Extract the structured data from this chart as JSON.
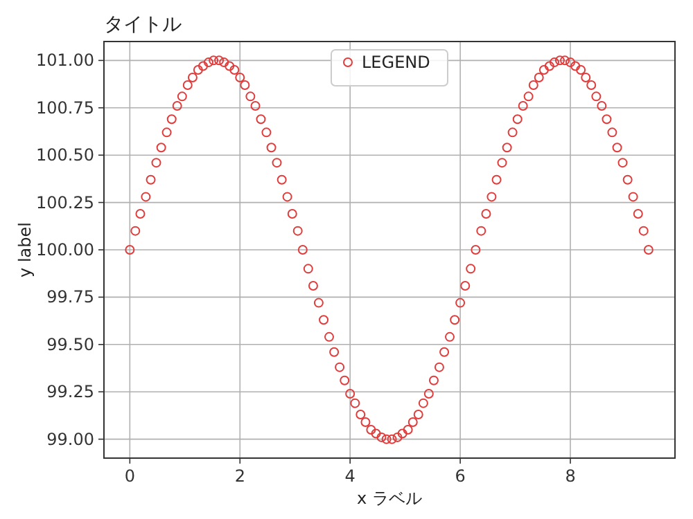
{
  "chart_data": {
    "type": "scatter",
    "title": "タイトル",
    "xlabel": "x ラベル",
    "ylabel": "y label",
    "x": [
      0.0,
      0.1,
      0.19,
      0.29,
      0.38,
      0.48,
      0.57,
      0.67,
      0.76,
      0.86,
      0.95,
      1.05,
      1.14,
      1.24,
      1.33,
      1.43,
      1.52,
      1.62,
      1.71,
      1.81,
      1.9,
      2.0,
      2.09,
      2.19,
      2.28,
      2.38,
      2.48,
      2.57,
      2.67,
      2.76,
      2.86,
      2.95,
      3.05,
      3.14,
      3.24,
      3.33,
      3.43,
      3.52,
      3.62,
      3.71,
      3.81,
      3.9,
      4.0,
      4.09,
      4.19,
      4.28,
      4.38,
      4.47,
      4.57,
      4.66,
      4.76,
      4.86,
      4.95,
      5.05,
      5.14,
      5.24,
      5.33,
      5.43,
      5.52,
      5.62,
      5.71,
      5.81,
      5.9,
      6.0,
      6.09,
      6.19,
      6.28,
      6.38,
      6.47,
      6.57,
      6.66,
      6.76,
      6.85,
      6.95,
      7.04,
      7.14,
      7.24,
      7.33,
      7.43,
      7.52,
      7.62,
      7.71,
      7.81,
      7.9,
      8.0,
      8.09,
      8.19,
      8.28,
      8.38,
      8.47,
      8.57,
      8.66,
      8.76,
      8.85,
      8.95,
      9.04,
      9.14,
      9.23,
      9.33,
      9.42
    ],
    "series": [
      {
        "name": "LEGEND",
        "color": "#e03c3c",
        "values": [
          100.0,
          100.1,
          100.19,
          100.28,
          100.37,
          100.46,
          100.54,
          100.62,
          100.69,
          100.76,
          100.81,
          100.87,
          100.91,
          100.95,
          100.97,
          100.99,
          101.0,
          101.0,
          100.99,
          100.97,
          100.95,
          100.91,
          100.87,
          100.81,
          100.76,
          100.69,
          100.62,
          100.54,
          100.46,
          100.37,
          100.28,
          100.19,
          100.1,
          100.0,
          99.9,
          99.81,
          99.72,
          99.63,
          99.54,
          99.46,
          99.38,
          99.31,
          99.24,
          99.19,
          99.13,
          99.09,
          99.05,
          99.03,
          99.01,
          99.0,
          99.0,
          99.01,
          99.03,
          99.05,
          99.09,
          99.13,
          99.19,
          99.24,
          99.31,
          99.38,
          99.46,
          99.54,
          99.63,
          99.72,
          99.81,
          99.9,
          100.0,
          100.1,
          100.19,
          100.28,
          100.37,
          100.46,
          100.54,
          100.62,
          100.69,
          100.76,
          100.81,
          100.87,
          100.91,
          100.95,
          100.97,
          100.99,
          101.0,
          101.0,
          100.99,
          100.97,
          100.95,
          100.91,
          100.87,
          100.81,
          100.76,
          100.69,
          100.62,
          100.54,
          100.46,
          100.37,
          100.28,
          100.19,
          100.1,
          100.0
        ]
      }
    ],
    "xlim": [
      -0.47,
      9.9
    ],
    "ylim": [
      98.9,
      101.1
    ],
    "xticks": [
      0,
      2,
      4,
      6,
      8
    ],
    "yticks": [
      {
        "value": 99,
        "label": "99.00"
      },
      {
        "value": 99.25,
        "label": "99.25"
      },
      {
        "value": 99.5,
        "label": "99.50"
      },
      {
        "value": 99.75,
        "label": "99.75"
      },
      {
        "value": 100,
        "label": "100.00"
      },
      {
        "value": 100.25,
        "label": "100.25"
      },
      {
        "value": 100.5,
        "label": "100.50"
      },
      {
        "value": 100.75,
        "label": "100.75"
      },
      {
        "value": 101,
        "label": "101.00"
      }
    ],
    "grid": true,
    "legend": "top",
    "marker": "circle"
  }
}
